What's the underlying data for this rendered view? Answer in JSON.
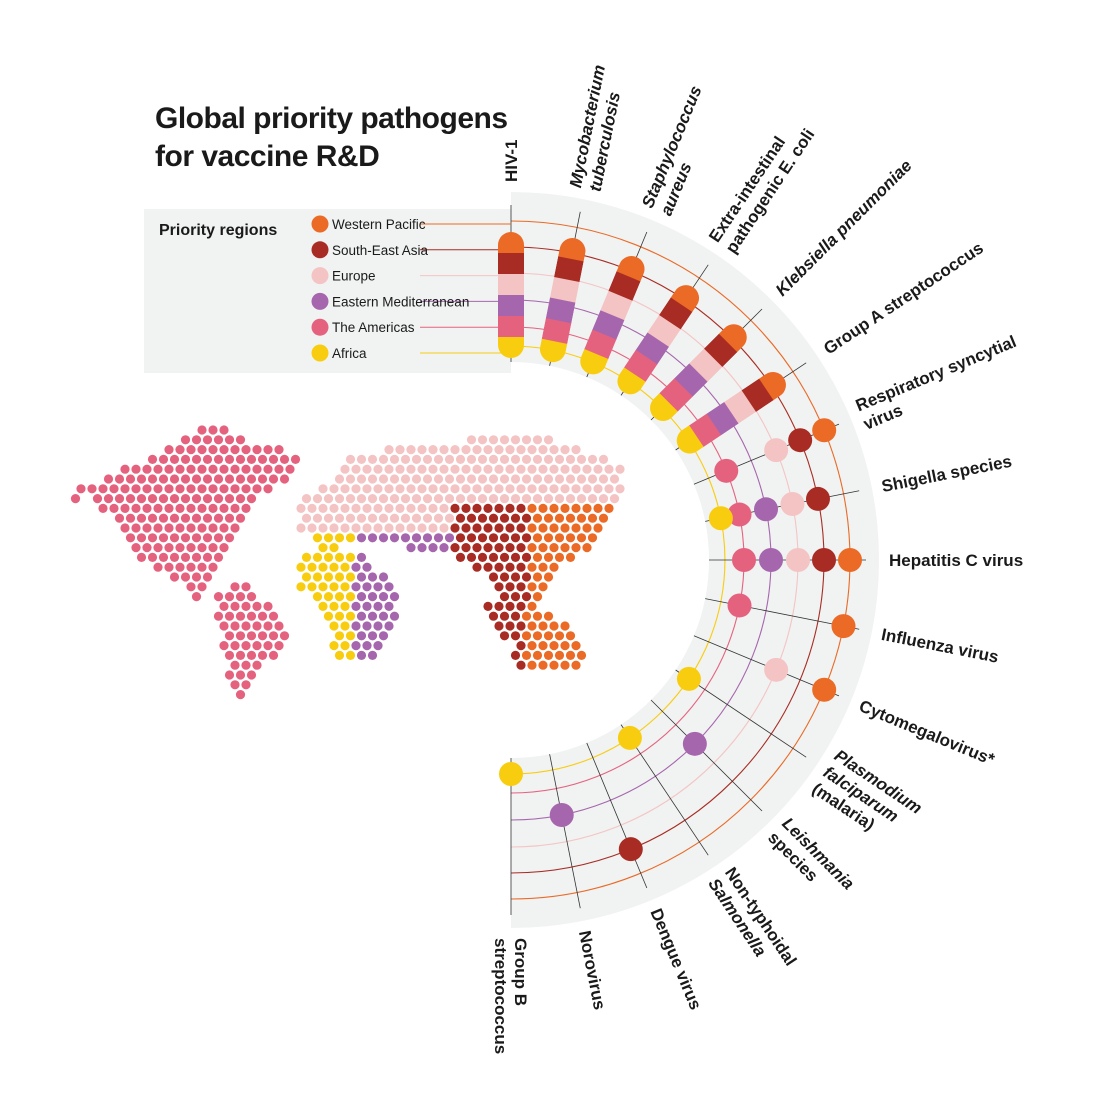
{
  "title": {
    "line1": "Global priority pathogens",
    "line2": "for vaccine R&D"
  },
  "legend": {
    "title": "Priority regions",
    "items": [
      {
        "key": "WP",
        "label": "Western Pacific",
        "color": "#ea6a26"
      },
      {
        "key": "SEA",
        "label": "South-East Asia",
        "color": "#a82c24"
      },
      {
        "key": "EUR",
        "label": "Europe",
        "color": "#f4c4c4"
      },
      {
        "key": "EMR",
        "label": "Eastern Mediterranean",
        "color": "#a666ad"
      },
      {
        "key": "AMR",
        "label": "The Americas",
        "color": "#e5627f"
      },
      {
        "key": "AFR",
        "label": "Africa",
        "color": "#f8cd0f"
      }
    ]
  },
  "pathogens": [
    {
      "lines": [
        "HIV-1"
      ],
      "italic": [
        false
      ],
      "regions": [
        "WP",
        "SEA",
        "EUR",
        "EMR",
        "AMR",
        "AFR"
      ]
    },
    {
      "lines": [
        "Mycobacterium",
        "tuberculosis"
      ],
      "italic": [
        true,
        true
      ],
      "regions": [
        "WP",
        "SEA",
        "EUR",
        "EMR",
        "AMR",
        "AFR"
      ]
    },
    {
      "lines": [
        "Staphylococcus",
        "aureus"
      ],
      "italic": [
        true,
        true
      ],
      "regions": [
        "WP",
        "SEA",
        "EUR",
        "EMR",
        "AMR",
        "AFR"
      ]
    },
    {
      "lines": [
        "Extra-intestinal",
        "pathogenic E. coli"
      ],
      "italic": [
        false,
        false
      ],
      "regions": [
        "WP",
        "SEA",
        "EUR",
        "EMR",
        "AMR",
        "AFR"
      ]
    },
    {
      "lines": [
        "Klebsiella pneumoniae"
      ],
      "italic": [
        true
      ],
      "regions": [
        "WP",
        "SEA",
        "EUR",
        "EMR",
        "AMR",
        "AFR"
      ]
    },
    {
      "lines": [
        "Group A streptococcus"
      ],
      "italic": [
        false
      ],
      "regions": [
        "WP",
        "SEA",
        "EUR",
        "EMR",
        "AMR",
        "AFR"
      ]
    },
    {
      "lines": [
        "Respiratory syncytial",
        "virus"
      ],
      "italic": [
        false,
        false
      ],
      "regions": [
        "WP",
        "SEA",
        "EUR",
        "AMR"
      ]
    },
    {
      "lines": [
        "Shigella species"
      ],
      "italic": [
        false
      ],
      "regions": [
        "SEA",
        "EUR",
        "EMR",
        "AMR",
        "AFR"
      ]
    },
    {
      "lines": [
        "Hepatitis C virus"
      ],
      "italic": [
        false
      ],
      "regions": [
        "WP",
        "SEA",
        "EUR",
        "EMR",
        "AMR"
      ]
    },
    {
      "lines": [
        "Influenza virus"
      ],
      "italic": [
        false
      ],
      "regions": [
        "WP",
        "AMR"
      ]
    },
    {
      "lines": [
        "Cytomegalovirus*"
      ],
      "italic": [
        false
      ],
      "regions": [
        "WP",
        "EUR"
      ]
    },
    {
      "lines": [
        "Plasmodium",
        "falciparum",
        "(malaria)"
      ],
      "italic": [
        true,
        true,
        false
      ],
      "regions": [
        "AFR"
      ]
    },
    {
      "lines": [
        "Leishmania",
        "species"
      ],
      "italic": [
        true,
        false
      ],
      "regions": [
        "EMR"
      ]
    },
    {
      "lines": [
        "Non-typhoidal",
        "Salmonella"
      ],
      "italic": [
        false,
        true
      ],
      "regions": [
        "AFR"
      ]
    },
    {
      "lines": [
        "Dengue virus"
      ],
      "italic": [
        false
      ],
      "regions": [
        "SEA"
      ]
    },
    {
      "lines": [
        "Norovirus"
      ],
      "italic": [
        false
      ],
      "regions": [
        "EMR"
      ]
    },
    {
      "lines": [
        "Group B",
        "streptococcus"
      ],
      "italic": [
        false,
        false
      ],
      "regions": [
        "AFR"
      ]
    }
  ]
}
